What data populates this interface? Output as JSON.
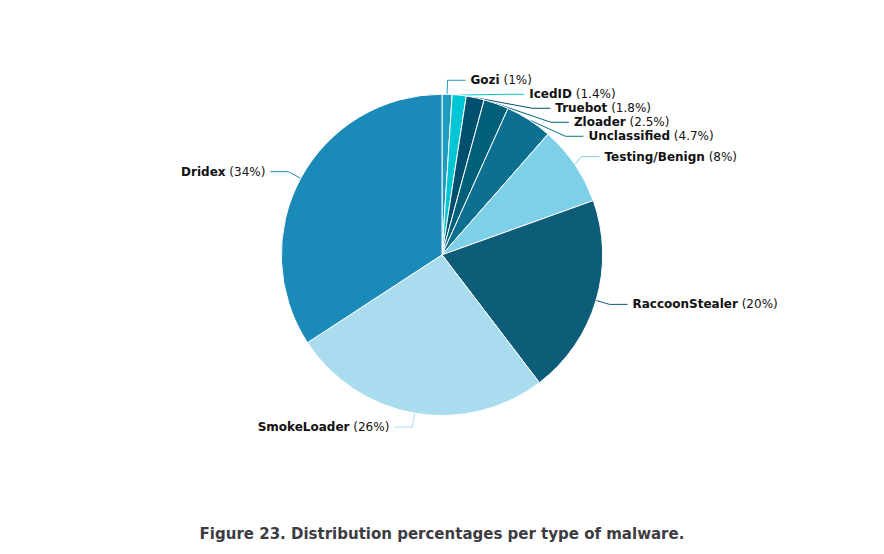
{
  "chart_data": {
    "type": "pie",
    "title": "Figure 23. Distribution percentages per type of malware.",
    "categories": [
      "Gozi",
      "IcedID",
      "Truebot",
      "Zloader",
      "Unclassified",
      "Testing/Benign",
      "RaccoonStealer",
      "SmokeLoader",
      "Dridex"
    ],
    "values": [
      1.0,
      1.4,
      1.8,
      2.5,
      4.7,
      8.0,
      20.0,
      26.0,
      34.0
    ],
    "value_labels": [
      "(1%)",
      "(1.4%)",
      "(1.8%)",
      "(2.5%)",
      "(4.7%)",
      "(8%)",
      "(20%)",
      "(26%)",
      "(34%)"
    ],
    "colors": [
      "#1e9bbf",
      "#00c5d4",
      "#004f6e",
      "#00607a",
      "#0e7090",
      "#7ecfe8",
      "#0d5c78",
      "#a8dcee",
      "#1a8ab8"
    ],
    "data_labels": true
  }
}
